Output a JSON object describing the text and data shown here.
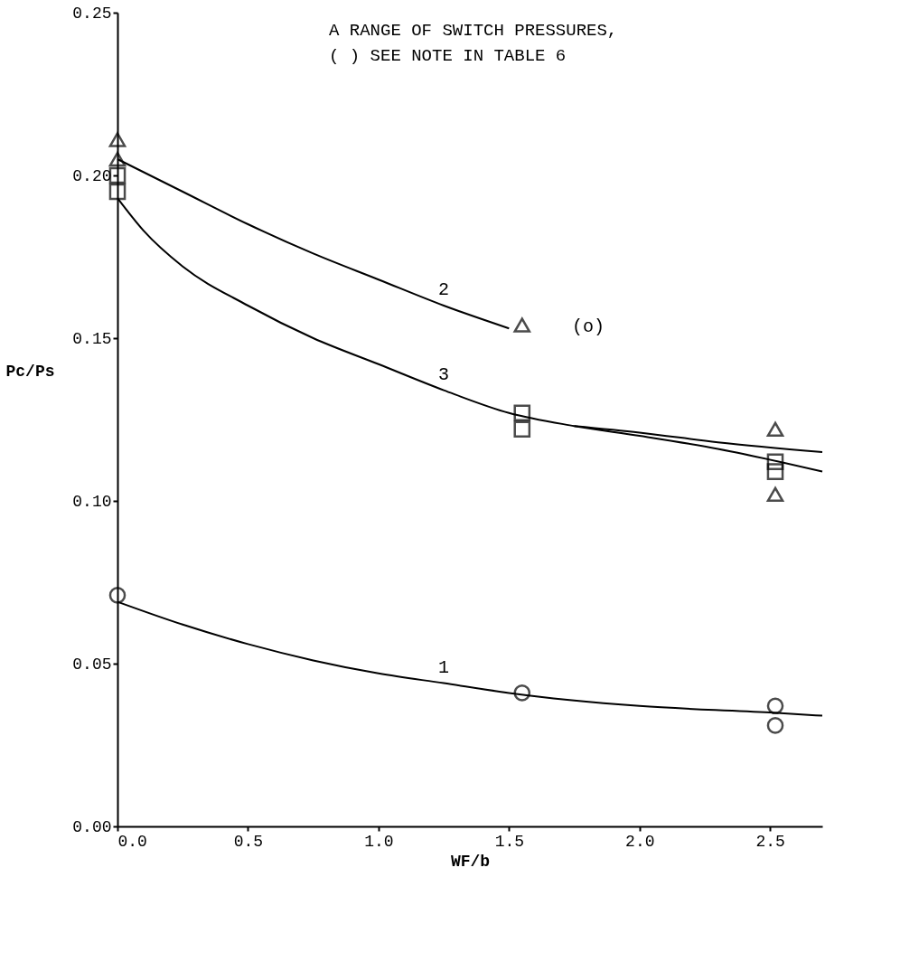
{
  "chart_data": {
    "type": "line",
    "xlabel": "WF/b",
    "ylabel": "Pc/Ps",
    "xlim": [
      0,
      2.7
    ],
    "ylim": [
      0,
      0.25
    ],
    "xticks": [
      {
        "value": 0,
        "label": "0.0"
      },
      0.5,
      {
        "value": 1,
        "label": "1.0"
      },
      1.5,
      {
        "value": 2,
        "label": "2.0"
      },
      2.5
    ],
    "yticks": [
      {
        "value": 0,
        "label": "0.00"
      },
      0.05,
      {
        "value": 0.1,
        "label": "0.10"
      },
      0.15,
      {
        "value": 0.2,
        "label": "0.20"
      },
      0.25
    ],
    "grid": false,
    "annotations": [
      "A RANGE OF SWITCH PRESSURES,",
      "( ) SEE NOTE IN TABLE 6",
      "(o)"
    ],
    "series": [
      {
        "name": "1",
        "color": "#000000",
        "x": [
          0,
          0.25,
          0.5,
          0.75,
          1.0,
          1.25,
          1.5,
          2.0,
          2.5,
          2.7
        ],
        "values": [
          0.069,
          0.062,
          0.056,
          0.051,
          0.047,
          0.044,
          0.041,
          0.037,
          0.035,
          0.034
        ]
      },
      {
        "name": "2",
        "color": "#000000",
        "x": [
          0,
          0.25,
          0.5,
          0.75,
          1.0,
          1.25,
          1.5,
          1.6,
          1.75,
          2.0,
          2.3,
          2.7
        ],
        "values": [
          0.205,
          0.195,
          0.185,
          0.176,
          0.168,
          0.16,
          0.153,
          null,
          0.123,
          0.121,
          0.118,
          0.115
        ]
      },
      {
        "name": "3",
        "color": "#000000",
        "x": [
          0,
          0.1,
          0.25,
          0.5,
          0.75,
          1.0,
          1.25,
          1.5,
          1.75,
          2.0,
          2.3,
          2.7
        ],
        "values": [
          0.193,
          0.183,
          0.172,
          0.16,
          0.15,
          0.142,
          0.134,
          0.127,
          0.123,
          0.12,
          0.116,
          0.109
        ]
      },
      {
        "type": "scatter",
        "marker": "circle",
        "color": "#000000",
        "x": [
          0,
          1.55,
          2.52,
          2.52
        ],
        "values": [
          0.071,
          0.041,
          0.037,
          0.031
        ]
      },
      {
        "type": "scatter",
        "marker": "square",
        "color": "#000000",
        "x": [
          0,
          0,
          1.55,
          1.55,
          2.52,
          2.52
        ],
        "values": [
          0.2,
          0.195,
          0.127,
          0.122,
          0.112,
          0.109
        ]
      },
      {
        "type": "scatter",
        "marker": "triangle",
        "color": "#000000",
        "x": [
          0,
          0,
          1.55,
          2.52,
          2.52
        ],
        "values": [
          0.211,
          0.205,
          0.154,
          0.122,
          0.102
        ]
      }
    ]
  }
}
